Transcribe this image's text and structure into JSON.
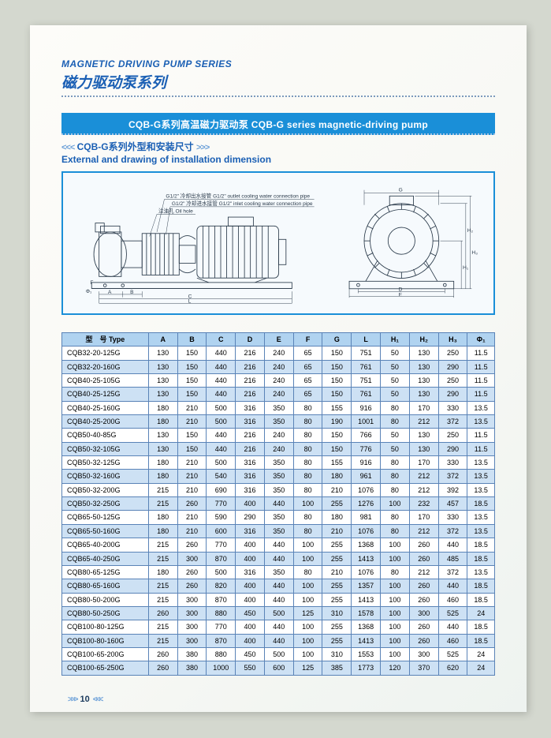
{
  "colors": {
    "accent": "#1a5fb4",
    "accent_light": "#6a9fd8",
    "header_row_bg": "#b0d3f0",
    "row_alt_bg": "#cde1f4",
    "row_bg": "#ffffff",
    "border": "#5a83b7",
    "text": "#1a3a5c"
  },
  "header": {
    "series_en": "MAGNETIC DRIVING PUMP SERIES",
    "series_cn": "磁力驱动泵系列",
    "banner": "CQB-G系列高温磁力驱动泵 CQB-G series magnetic-driving pump",
    "sub_cn": "CQB-G系列外型和安装尺寸",
    "sub_en": "External and drawing of installation dimension",
    "arrow_l": "<<<",
    "arrow_r": ">>>"
  },
  "drawing": {
    "outlet_label": "G1/2\"  冷却出水接管 G1/2\"  outlet cooling water connection pipe",
    "inlet_label": "G1/2\"  冷却进水接管 G1/2\"  inlet cooling water connection pipe",
    "oil_label": "注油孔 Oil hole",
    "dim_A": "A",
    "dim_B": "B",
    "dim_C": "C",
    "dim_L": "L",
    "dim_F": "F",
    "dim_Phi": "Φ₁",
    "dim_G": "G",
    "dim_D": "D",
    "dim_E": "E",
    "dim_H1": "H₁",
    "dim_H2": "H₂",
    "dim_H3": "H₃"
  },
  "table": {
    "columns": [
      "型　号 Type",
      "A",
      "B",
      "C",
      "D",
      "E",
      "F",
      "G",
      "L",
      "H₁",
      "H₂",
      "H₃",
      "Φ₁"
    ],
    "col_widths": [
      "20%",
      "6.7%",
      "6.7%",
      "6.7%",
      "6.7%",
      "6.7%",
      "6.7%",
      "6.7%",
      "6.7%",
      "6.7%",
      "6.7%",
      "6.7%",
      "6.3%"
    ],
    "rows": [
      [
        "CQB32-20-125G",
        "130",
        "150",
        "440",
        "216",
        "240",
        "65",
        "150",
        "751",
        "50",
        "130",
        "250",
        "11.5"
      ],
      [
        "CQB32-20-160G",
        "130",
        "150",
        "440",
        "216",
        "240",
        "65",
        "150",
        "761",
        "50",
        "130",
        "290",
        "11.5"
      ],
      [
        "CQB40-25-105G",
        "130",
        "150",
        "440",
        "216",
        "240",
        "65",
        "150",
        "751",
        "50",
        "130",
        "250",
        "11.5"
      ],
      [
        "CQB40-25-125G",
        "130",
        "150",
        "440",
        "216",
        "240",
        "65",
        "150",
        "761",
        "50",
        "130",
        "290",
        "11.5"
      ],
      [
        "CQB40-25-160G",
        "180",
        "210",
        "500",
        "316",
        "350",
        "80",
        "155",
        "916",
        "80",
        "170",
        "330",
        "13.5"
      ],
      [
        "CQB40-25-200G",
        "180",
        "210",
        "500",
        "316",
        "350",
        "80",
        "190",
        "1001",
        "80",
        "212",
        "372",
        "13.5"
      ],
      [
        "CQB50-40-85G",
        "130",
        "150",
        "440",
        "216",
        "240",
        "80",
        "150",
        "766",
        "50",
        "130",
        "250",
        "11.5"
      ],
      [
        "CQB50-32-105G",
        "130",
        "150",
        "440",
        "216",
        "240",
        "80",
        "150",
        "776",
        "50",
        "130",
        "290",
        "11.5"
      ],
      [
        "CQB50-32-125G",
        "180",
        "210",
        "500",
        "316",
        "350",
        "80",
        "155",
        "916",
        "80",
        "170",
        "330",
        "13.5"
      ],
      [
        "CQB50-32-160G",
        "180",
        "210",
        "540",
        "316",
        "350",
        "80",
        "180",
        "961",
        "80",
        "212",
        "372",
        "13.5"
      ],
      [
        "CQB50-32-200G",
        "215",
        "210",
        "690",
        "316",
        "350",
        "80",
        "210",
        "1076",
        "80",
        "212",
        "392",
        "13.5"
      ],
      [
        "CQB50-32-250G",
        "215",
        "260",
        "770",
        "400",
        "440",
        "100",
        "255",
        "1276",
        "100",
        "232",
        "457",
        "18.5"
      ],
      [
        "CQB65-50-125G",
        "180",
        "210",
        "590",
        "290",
        "350",
        "80",
        "180",
        "981",
        "80",
        "170",
        "330",
        "13.5"
      ],
      [
        "CQB65-50-160G",
        "180",
        "210",
        "600",
        "316",
        "350",
        "80",
        "210",
        "1076",
        "80",
        "212",
        "372",
        "13.5"
      ],
      [
        "CQB65-40-200G",
        "215",
        "260",
        "770",
        "400",
        "440",
        "100",
        "255",
        "1368",
        "100",
        "260",
        "440",
        "18.5"
      ],
      [
        "CQB65-40-250G",
        "215",
        "300",
        "870",
        "400",
        "440",
        "100",
        "255",
        "1413",
        "100",
        "260",
        "485",
        "18.5"
      ],
      [
        "CQB80-65-125G",
        "180",
        "260",
        "500",
        "316",
        "350",
        "80",
        "210",
        "1076",
        "80",
        "212",
        "372",
        "13.5"
      ],
      [
        "CQB80-65-160G",
        "215",
        "260",
        "820",
        "400",
        "440",
        "100",
        "255",
        "1357",
        "100",
        "260",
        "440",
        "18.5"
      ],
      [
        "CQB80-50-200G",
        "215",
        "300",
        "870",
        "400",
        "440",
        "100",
        "255",
        "1413",
        "100",
        "260",
        "460",
        "18.5"
      ],
      [
        "CQB80-50-250G",
        "260",
        "300",
        "880",
        "450",
        "500",
        "125",
        "310",
        "1578",
        "100",
        "300",
        "525",
        "24"
      ],
      [
        "CQB100-80-125G",
        "215",
        "300",
        "770",
        "400",
        "440",
        "100",
        "255",
        "1368",
        "100",
        "260",
        "440",
        "18.5"
      ],
      [
        "CQB100-80-160G",
        "215",
        "300",
        "870",
        "400",
        "440",
        "100",
        "255",
        "1413",
        "100",
        "260",
        "460",
        "18.5"
      ],
      [
        "CQB100-65-200G",
        "260",
        "380",
        "880",
        "450",
        "500",
        "100",
        "310",
        "1553",
        "100",
        "300",
        "525",
        "24"
      ],
      [
        "CQB100-65-250G",
        "260",
        "380",
        "1000",
        "550",
        "600",
        "125",
        "385",
        "1773",
        "120",
        "370",
        "620",
        "24"
      ]
    ]
  },
  "footer": {
    "page_num": "10",
    "arr_l": ">>>",
    "arr_r": "<<<"
  }
}
